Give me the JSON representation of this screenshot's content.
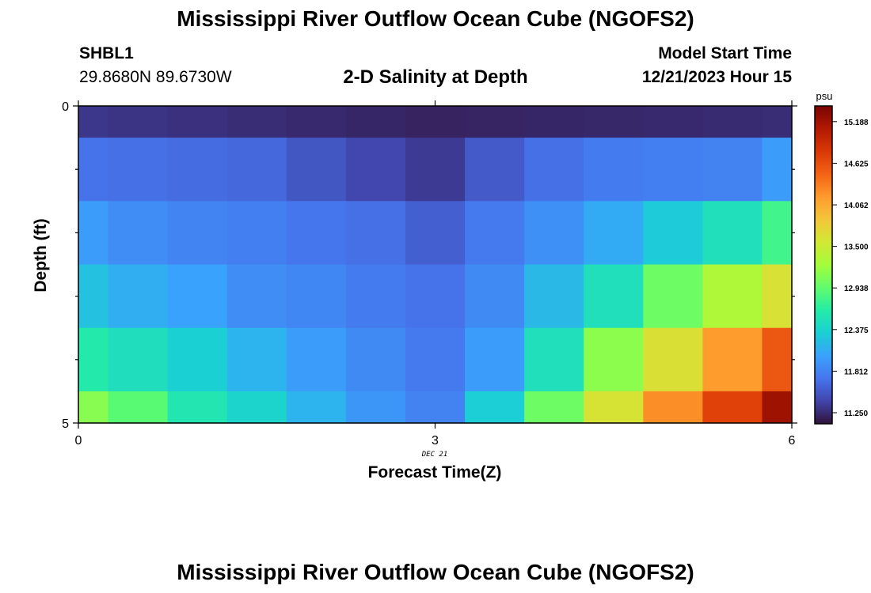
{
  "header": {
    "title": "Mississippi River Outflow Ocean Cube (NGOFS2)",
    "station_id": "SHBL1",
    "coordinates": "29.8680N  89.6730W",
    "subtitle": "2-D Salinity at Depth",
    "model_start_label": "Model Start Time",
    "model_start_value": "12/21/2023 Hour 15"
  },
  "footer": {
    "title": "Mississippi River Outflow Ocean Cube (NGOFS2)"
  },
  "chart_data": {
    "type": "heatmap",
    "title": "2-D Salinity at Depth",
    "xlabel": "Forecast Time(Z)",
    "ylabel": "Depth (ft)",
    "x_ticks": [
      "0",
      "3",
      "6"
    ],
    "y_ticks": [
      "0",
      "5"
    ],
    "x_sublabel": "DEC 21",
    "xlim": [
      0,
      6
    ],
    "ylim": [
      5,
      0
    ],
    "x_centers": [
      0,
      0.5,
      1.0,
      1.5,
      2.0,
      2.5,
      3.0,
      3.5,
      4.0,
      4.5,
      5.0,
      5.5,
      6.0
    ],
    "depth_rows": [
      {
        "top": 0,
        "bottom": 0.5
      },
      {
        "top": 0.5,
        "bottom": 1.5
      },
      {
        "top": 1.5,
        "bottom": 2.5
      },
      {
        "top": 2.5,
        "bottom": 3.5
      },
      {
        "top": 3.5,
        "bottom": 4.5
      },
      {
        "top": 4.5,
        "bottom": 5
      }
    ],
    "values": [
      [
        11.32,
        11.3,
        11.28,
        11.26,
        11.24,
        11.22,
        11.2,
        11.21,
        11.22,
        11.23,
        11.24,
        11.25,
        11.26
      ],
      [
        11.7,
        11.68,
        11.66,
        11.64,
        11.52,
        11.42,
        11.34,
        11.54,
        11.68,
        11.76,
        11.78,
        11.8,
        11.98
      ],
      [
        11.98,
        11.88,
        11.82,
        11.78,
        11.72,
        11.68,
        11.58,
        11.74,
        11.9,
        12.08,
        12.3,
        12.5,
        12.78
      ],
      [
        12.24,
        12.1,
        12.02,
        11.88,
        11.84,
        11.76,
        11.7,
        11.86,
        12.18,
        12.5,
        13.0,
        13.32,
        13.62
      ],
      [
        12.6,
        12.48,
        12.34,
        12.14,
        11.98,
        11.86,
        11.74,
        11.98,
        12.5,
        13.14,
        13.64,
        14.16,
        14.56
      ],
      [
        13.12,
        12.9,
        12.56,
        12.38,
        12.14,
        11.94,
        11.8,
        12.32,
        13.0,
        13.6,
        14.24,
        14.72,
        15.2
      ]
    ],
    "colorbar": {
      "unit": "psu",
      "min": 11.1,
      "max": 15.4,
      "ticks": [
        "15.188",
        "14.625",
        "14.062",
        "13.500",
        "12.938",
        "12.375",
        "11.812",
        "11.250"
      ]
    },
    "colormap": [
      "#30123b",
      "#4145ab",
      "#4675ed",
      "#39a2fc",
      "#1bcfd4",
      "#24eca6",
      "#61fc6c",
      "#a4fc3b",
      "#d1e834",
      "#f3c63a",
      "#fe9b2d",
      "#f36315",
      "#d93806",
      "#b11901",
      "#7a0403"
    ]
  }
}
